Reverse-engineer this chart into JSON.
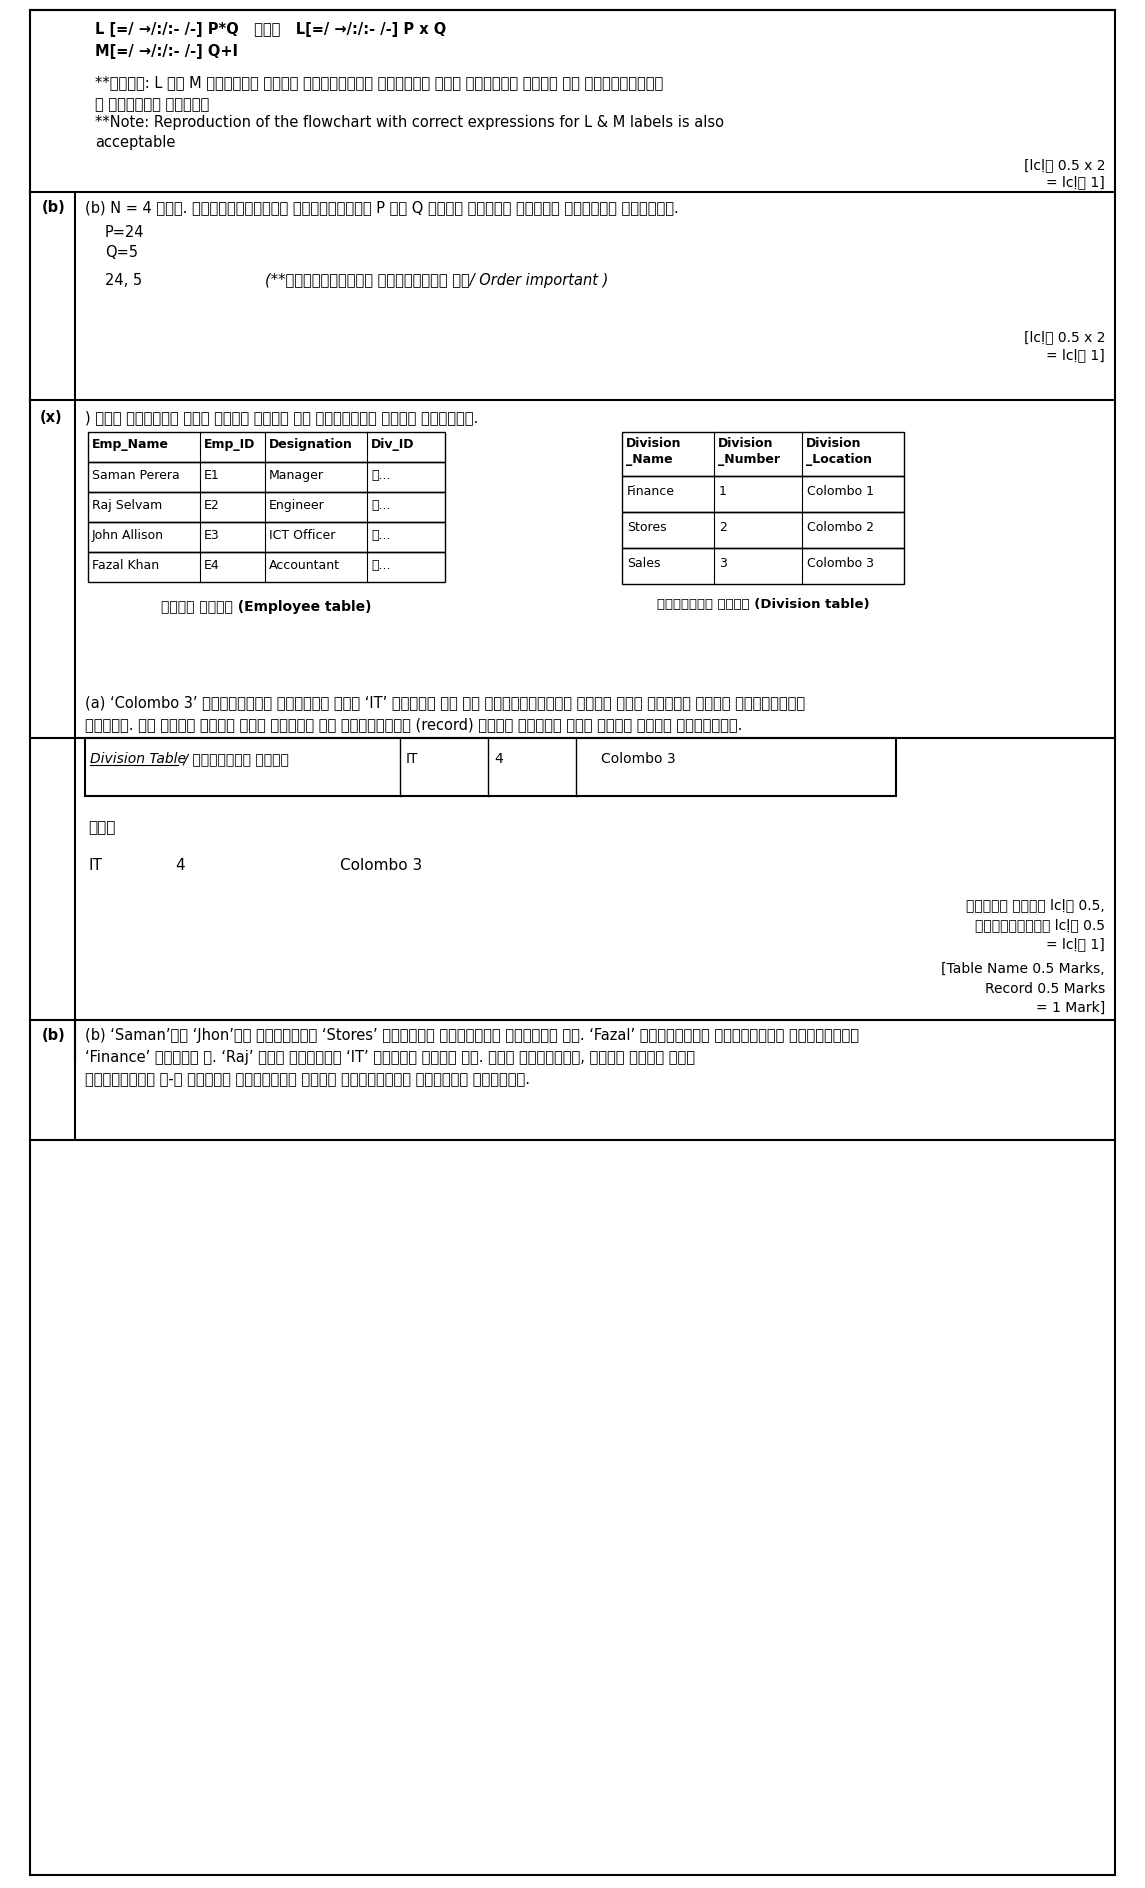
{
  "bg_color": "#ffffff",
  "top_section": {
    "line1": "L [=/ →/:/:- /-] P*Q   ොය්   L[=/ →/:/:- /-] P x Q",
    "line2": "M[=/ →/:/:- /-] Q+I",
    "note1": "**සටහන: L සහ M ලෙල්බල සදහා නිවාර්දි ජරකාසන සමහ ගාලිම් සටහන ඇද අවස්༁ාවන්",
    "note2": "ද පිලිගත නාහිය",
    "note3": "**Note: Reproduction of the flowchart with correct expressions for L & M labels is also",
    "note4": "acceptable",
    "marks1": "[lcḷු 0.5 x 2",
    "marks2": "= lcḷු 1]"
  },
  "section_b": {
    "label": "(b)",
    "question": "(b) N = 4 තම්. ඇල්ගෝරිතමක් අවසානයේදි P සහ Q සදහා පවතින අවසන් අගයන්༁ ලියන්න.",
    "p_val": "P=24",
    "q_val": "Q=5",
    "answer": "24, 5",
    "note": "(**අනුපිලිවෝල අත්යවසයය වේ/ Order important )",
    "marks1": "[lcḷු 0.5 x 2",
    "marks2": "= lcḷු 1]"
  },
  "section_x": {
    "label": "(x)",
    "intro": ") පහත ෛොන්නා ඇති සේවක වගුව සහ කාර්යාග වගුව සලකන්න.",
    "emp_headers": [
      "Emp_Name",
      "Emp_ID",
      "Designation",
      "Div_ID"
    ],
    "emp_rows": [
      [
        "Saman Perera",
        "E1",
        "Manager",
        "Ⓡ..."
      ],
      [
        "Raj Selvam",
        "E2",
        "Engineer",
        "Ⓡ..."
      ],
      [
        "John Allison",
        "E3",
        "ICT Officer",
        "Ⓡ..."
      ],
      [
        "Fazal Khan",
        "E4",
        "Accountant",
        "Ⓡ..."
      ]
    ],
    "emp_caption": "සේවක වගුව (Employee table)",
    "div_headers": [
      "Division\n_Name",
      "Division\n_Number",
      "Division\n_Location"
    ],
    "div_rows": [
      [
        "Finance",
        "1",
        "Colombo 1"
      ],
      [
        "Stores",
        "2",
        "Colombo 2"
      ],
      [
        "Sales",
        "3",
        "Colombo 3"
      ]
    ],
    "div_caption": "කාර්යාග වගුව (Division table)",
    "part_a_q1": "(a) ‘Colombo 3’ ප්‍රදේශයේ පිහිටා ඇති ‘IT’ නමින් වු නව කාර්යාගයක් එකතු කලා යුතුව ආනේි උපකල්පනය",
    "part_a_q2": "කරන්න. මේ සදහා එකතු කලා යුතුව නව රේකොර්ේය (record) ඇදාල වගුවේ නම් සහලල ලියා දක්වන්න.",
    "ans_label": "Division Table",
    "ans_label2": " / කාර්යාග වගුව",
    "ans_row": [
      "IT",
      "4",
      "Colombo 3"
    ],
    "or_text": "ොය්",
    "alt_it": "IT",
    "alt_4": "4",
    "alt_colombo": "Colombo 3",
    "marks_table": "වගුවේ නමටට lcḷු 0.5,",
    "marks_record": "රේකොර්ේයට lcḷු 0.5",
    "marks_total": "= lcḷු 1]",
    "marks_eng1": "[Table Name 0.5 Marks,",
    "marks_eng2": "Record 0.5 Marks",
    "marks_eng3": "= 1 Mark]",
    "part_b_label": "(b)",
    "part_b_q1": "(b) ‘Saman’යා ‘Jhon’යන දේදදානා ‘Stores’ අයකයේ් කාර්යයේ පිලිබු වේ. ‘Fazal’ කාර්යයේ් පිලිබුන් සිටින්සේ",
    "part_b_q2": "‘Finance’ අයකයා ය. ‘Raj’ මයන සාලයේ් ‘IT’ අයකයේ කෂේව ඇත. මේම තොරතුරු, සේවක වගුව සහල",
    "part_b_q3": "පෝන්නේටේ ප-ෞ දක්වා වගුවලතට අදාල නිවාර්දි අගයන්༁ ලියන්න."
  }
}
